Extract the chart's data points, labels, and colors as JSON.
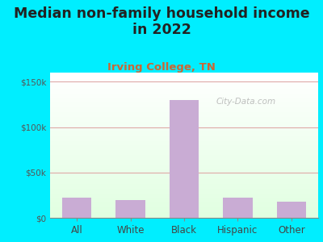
{
  "title": "Median non-family household income\nin 2022",
  "subtitle": "Irving College, TN",
  "categories": [
    "All",
    "White",
    "Black",
    "Hispanic",
    "Other"
  ],
  "values": [
    22000,
    20000,
    130000,
    22000,
    18000
  ],
  "bar_color": "#c9acd4",
  "title_fontsize": 12.5,
  "subtitle_fontsize": 9.5,
  "subtitle_color": "#cc6633",
  "title_color": "#222222",
  "tick_label_color": "#444444",
  "ytick_color": "#555555",
  "background_outer": "#00eeff",
  "grid_color": "#dda0a0",
  "ylim": [
    0,
    160000
  ],
  "yticks": [
    0,
    50000,
    100000,
    150000
  ],
  "ytick_labels": [
    "$0",
    "$50k",
    "$100k",
    "$150k"
  ],
  "watermark": "City-Data.com"
}
